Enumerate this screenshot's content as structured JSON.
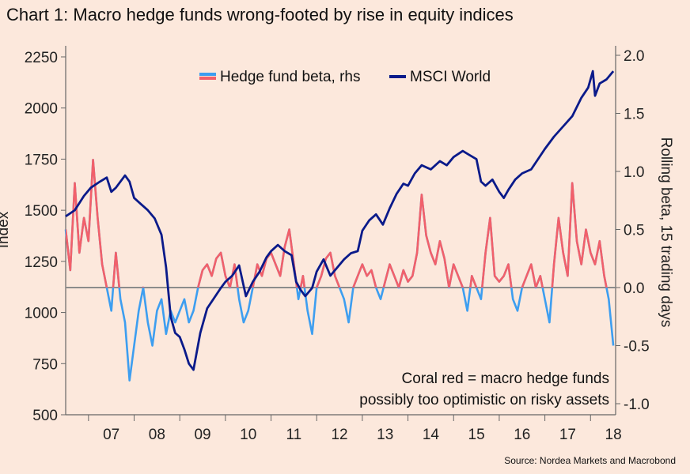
{
  "chart_data": {
    "type": "line",
    "title": "Chart 1: Macro hedge funds wrong-footed by rise in equity indices",
    "source": "Source: Nordea Markets and Macrobond",
    "ylabel_left": "Index",
    "ylabel_right": "Rolling beta, 15 trading days",
    "left_axis": {
      "min": 500,
      "max": 2250,
      "ticks": [
        500,
        750,
        1000,
        1250,
        1500,
        1750,
        2000,
        2250
      ]
    },
    "right_axis": {
      "min": -1.0,
      "max": 2.0,
      "ticks": [
        "-1.0",
        "-0.5",
        "0.0",
        "0.5",
        "1.0",
        "1.5",
        "2.0"
      ]
    },
    "x_axis": {
      "min": 2006.5,
      "max": 2018.55,
      "ticks": [
        "07",
        "08",
        "09",
        "10",
        "11",
        "12",
        "13",
        "14",
        "15",
        "16",
        "17",
        "18"
      ]
    },
    "zero_line": 0,
    "legend": {
      "placement": "top-center",
      "items": [
        "Hedge fund beta, rhs",
        "MSCI World"
      ]
    },
    "annotation": [
      "Coral red = macro hedge funds",
      "possibly too optimistic on risky assets"
    ],
    "colors": {
      "beta": "#3d9ef0",
      "beta_positive": "#f2606a",
      "msci": "#0a1a8a",
      "zero_line": "#8c8c8c"
    },
    "series": [
      {
        "name": "MSCI World",
        "axis": "left",
        "x": [
          2006.5,
          2006.7,
          2006.9,
          2007.05,
          2007.25,
          2007.4,
          2007.5,
          2007.6,
          2007.8,
          2007.9,
          2008.0,
          2008.15,
          2008.3,
          2008.45,
          2008.6,
          2008.7,
          2008.8,
          2008.9,
          2009.0,
          2009.1,
          2009.2,
          2009.3,
          2009.45,
          2009.6,
          2009.75,
          2009.9,
          2010.0,
          2010.15,
          2010.3,
          2010.45,
          2010.6,
          2010.75,
          2010.9,
          2011.0,
          2011.15,
          2011.3,
          2011.45,
          2011.55,
          2011.65,
          2011.75,
          2011.9,
          2012.0,
          2012.15,
          2012.3,
          2012.45,
          2012.6,
          2012.75,
          2012.9,
          2013.0,
          2013.15,
          2013.3,
          2013.45,
          2013.6,
          2013.75,
          2013.9,
          2014.0,
          2014.15,
          2014.3,
          2014.5,
          2014.7,
          2014.85,
          2015.0,
          2015.2,
          2015.35,
          2015.5,
          2015.6,
          2015.7,
          2015.85,
          2016.0,
          2016.1,
          2016.2,
          2016.35,
          2016.5,
          2016.7,
          2016.85,
          2017.0,
          2017.2,
          2017.4,
          2017.6,
          2017.8,
          2017.95,
          2018.05,
          2018.1,
          2018.2,
          2018.35,
          2018.5
        ],
        "values": [
          1470,
          1500,
          1570,
          1610,
          1640,
          1660,
          1590,
          1610,
          1670,
          1640,
          1560,
          1530,
          1500,
          1460,
          1380,
          1220,
          980,
          900,
          880,
          820,
          750,
          720,
          900,
          1020,
          1070,
          1120,
          1150,
          1180,
          1230,
          1080,
          1150,
          1200,
          1270,
          1300,
          1330,
          1300,
          1280,
          1150,
          1110,
          1080,
          1120,
          1200,
          1260,
          1180,
          1220,
          1260,
          1290,
          1300,
          1400,
          1450,
          1480,
          1430,
          1510,
          1580,
          1630,
          1620,
          1680,
          1720,
          1700,
          1740,
          1720,
          1760,
          1790,
          1770,
          1750,
          1640,
          1620,
          1650,
          1590,
          1560,
          1600,
          1650,
          1680,
          1700,
          1750,
          1800,
          1860,
          1910,
          1960,
          2050,
          2100,
          2180,
          2060,
          2120,
          2140,
          2180
        ]
      },
      {
        "name": "Hedge fund beta, rhs",
        "axis": "right",
        "x": [
          2006.5,
          2006.6,
          2006.7,
          2006.8,
          2006.9,
          2007.0,
          2007.1,
          2007.2,
          2007.3,
          2007.4,
          2007.5,
          2007.6,
          2007.7,
          2007.8,
          2007.9,
          2008.0,
          2008.1,
          2008.2,
          2008.3,
          2008.4,
          2008.5,
          2008.6,
          2008.7,
          2008.8,
          2008.9,
          2009.0,
          2009.1,
          2009.2,
          2009.3,
          2009.4,
          2009.5,
          2009.6,
          2009.7,
          2009.8,
          2009.9,
          2010.0,
          2010.1,
          2010.2,
          2010.3,
          2010.4,
          2010.5,
          2010.6,
          2010.7,
          2010.8,
          2010.9,
          2011.0,
          2011.1,
          2011.2,
          2011.3,
          2011.4,
          2011.5,
          2011.6,
          2011.7,
          2011.8,
          2011.9,
          2012.0,
          2012.1,
          2012.2,
          2012.3,
          2012.4,
          2012.5,
          2012.6,
          2012.7,
          2012.8,
          2012.9,
          2013.0,
          2013.1,
          2013.2,
          2013.3,
          2013.4,
          2013.5,
          2013.6,
          2013.7,
          2013.8,
          2013.9,
          2014.0,
          2014.1,
          2014.2,
          2014.3,
          2014.4,
          2014.5,
          2014.6,
          2014.7,
          2014.8,
          2014.9,
          2015.0,
          2015.1,
          2015.2,
          2015.3,
          2015.4,
          2015.5,
          2015.6,
          2015.7,
          2015.8,
          2015.9,
          2016.0,
          2016.1,
          2016.2,
          2016.3,
          2016.4,
          2016.5,
          2016.6,
          2016.7,
          2016.8,
          2016.9,
          2017.0,
          2017.1,
          2017.2,
          2017.3,
          2017.4,
          2017.5,
          2017.6,
          2017.7,
          2017.8,
          2017.9,
          2018.0,
          2018.1,
          2018.2,
          2018.3,
          2018.4,
          2018.5
        ],
        "values": [
          0.5,
          0.15,
          0.9,
          0.3,
          0.6,
          0.4,
          1.1,
          0.6,
          0.2,
          0.0,
          -0.2,
          0.3,
          -0.1,
          -0.3,
          -0.8,
          -0.5,
          -0.2,
          0.0,
          -0.3,
          -0.5,
          -0.2,
          -0.1,
          -0.4,
          -0.2,
          -0.3,
          -0.2,
          -0.1,
          -0.3,
          -0.2,
          0.0,
          0.15,
          0.2,
          0.1,
          0.25,
          0.3,
          0.1,
          0.0,
          0.2,
          -0.1,
          -0.3,
          -0.2,
          0.0,
          0.2,
          0.1,
          0.25,
          0.3,
          0.2,
          0.1,
          0.35,
          0.5,
          0.2,
          -0.1,
          0.1,
          -0.2,
          -0.4,
          0.0,
          0.1,
          0.25,
          0.3,
          0.1,
          0.0,
          -0.1,
          -0.3,
          0.0,
          0.1,
          0.2,
          0.1,
          0.15,
          0.0,
          -0.1,
          0.05,
          0.2,
          0.1,
          0.0,
          0.15,
          0.05,
          0.1,
          0.3,
          0.8,
          0.45,
          0.3,
          0.2,
          0.4,
          0.25,
          0.0,
          0.2,
          0.1,
          0.0,
          -0.2,
          0.1,
          0.0,
          -0.1,
          0.3,
          0.6,
          0.1,
          0.05,
          0.1,
          0.2,
          -0.1,
          -0.2,
          0.0,
          0.1,
          0.2,
          0.0,
          0.1,
          -0.1,
          -0.3,
          0.2,
          0.6,
          0.3,
          0.1,
          0.9,
          0.4,
          0.2,
          0.5,
          0.3,
          0.2,
          0.4,
          0.1,
          -0.1,
          -0.5
        ]
      }
    ]
  }
}
